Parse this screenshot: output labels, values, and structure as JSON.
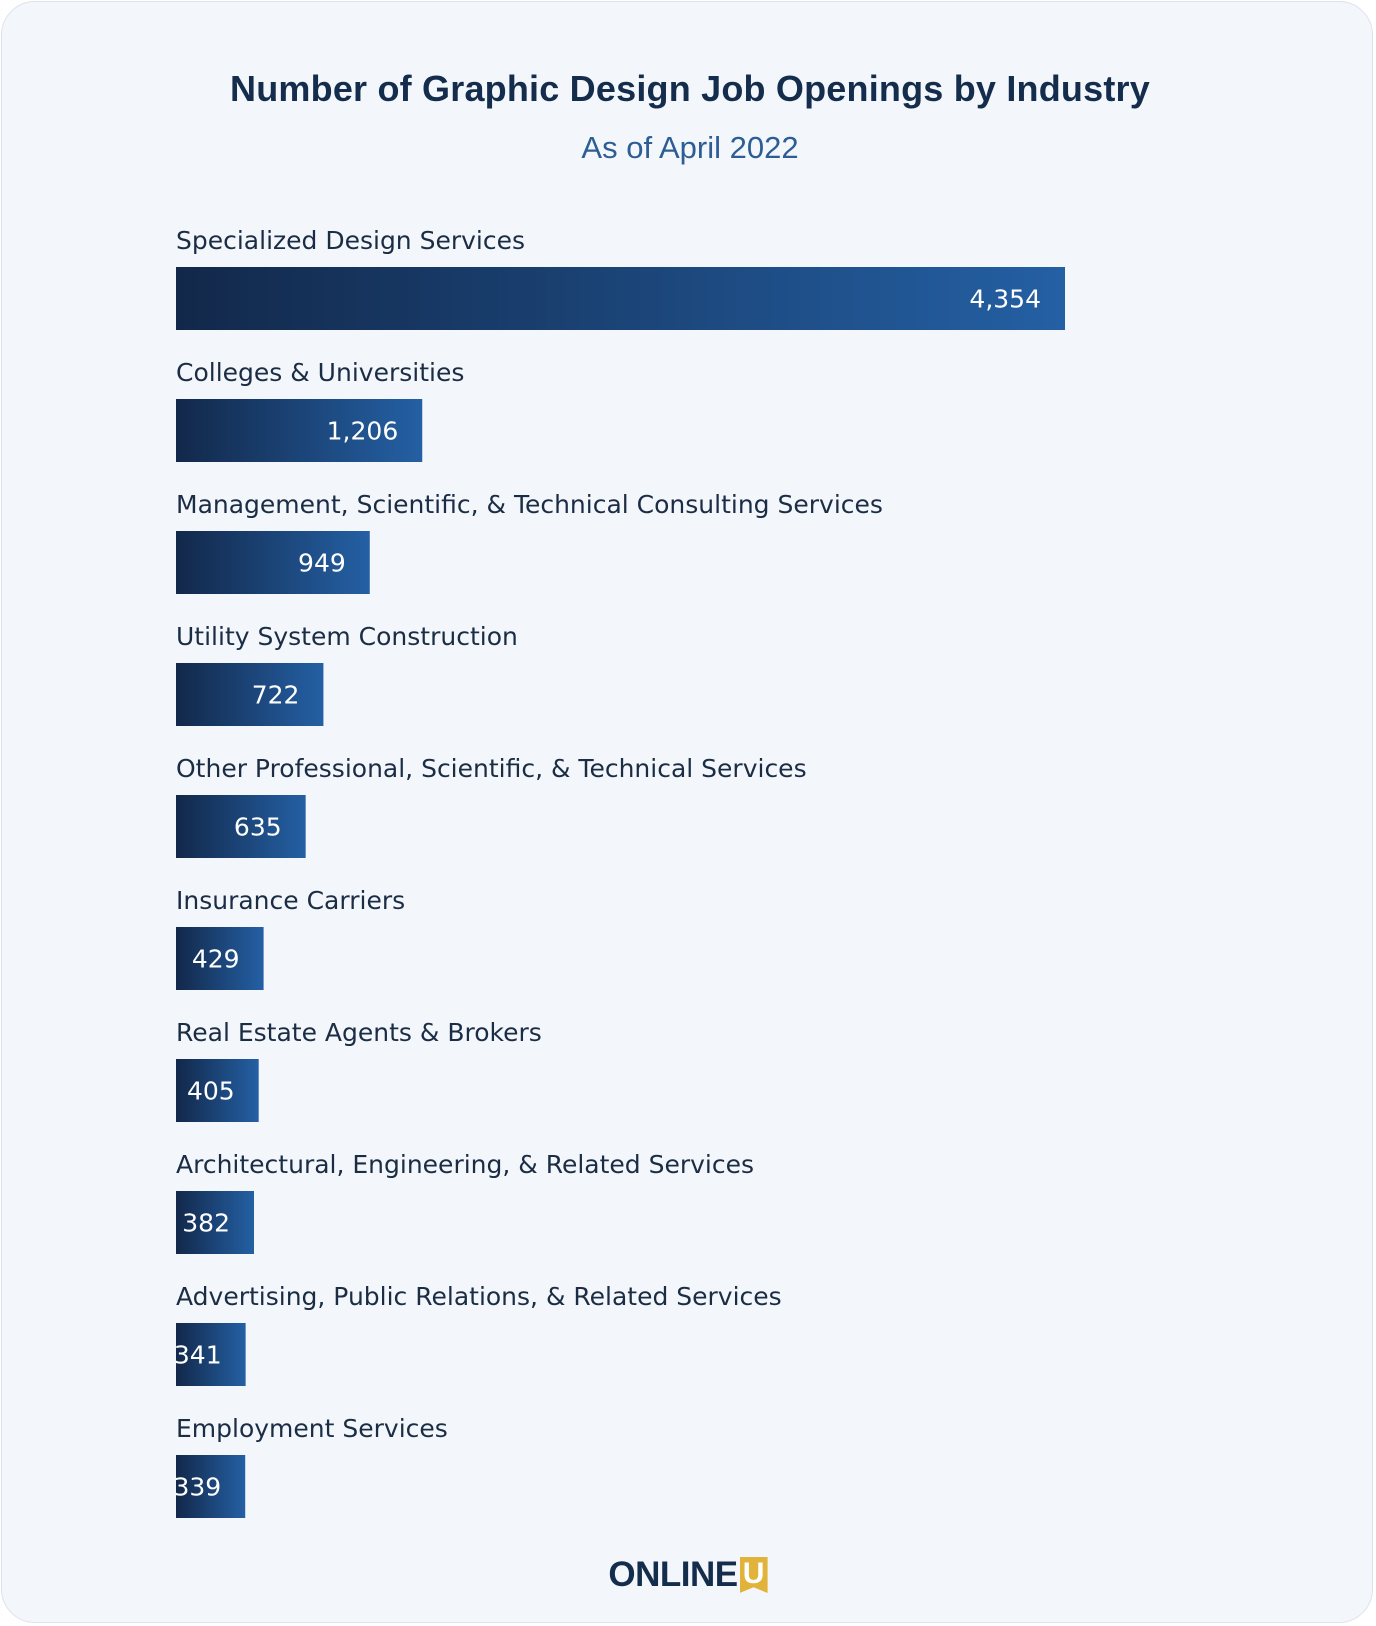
{
  "title": "Number of Graphic Design Job Openings by Industry",
  "subtitle": "As of April 2022",
  "colors": {
    "bar_start": "#12284a",
    "bar_end": "#2460a4",
    "title": "#142d4c",
    "subtitle": "#2c5d95",
    "background": "#f3f6fa",
    "logo_accent": "#e2b33b"
  },
  "chart_data": {
    "type": "bar",
    "orientation": "horizontal",
    "categories": [
      "Specialized Design Services",
      "Colleges & Universities",
      "Management, Scientific, & Technical Consulting Services",
      "Utility System Construction",
      "Other Professional, Scientific, & Technical Services",
      "Insurance Carriers",
      "Real Estate Agents & Brokers",
      "Architectural, Engineering, & Related Services",
      "Advertising, Public Relations, & Related Services",
      "Employment Services"
    ],
    "values": [
      4354,
      1206,
      949,
      722,
      635,
      429,
      405,
      382,
      341,
      339
    ],
    "value_labels": [
      "4,354",
      "1,206",
      "949",
      "722",
      "635",
      "429",
      "405",
      "382",
      "341",
      "339"
    ],
    "title": "Number of Graphic Design Job Openings by Industry",
    "subtitle": "As of April 2022",
    "xlabel": "",
    "ylabel": "",
    "grid": false,
    "legend": "none"
  },
  "logo": {
    "word": "ONLINE",
    "badge_letter": "U"
  }
}
